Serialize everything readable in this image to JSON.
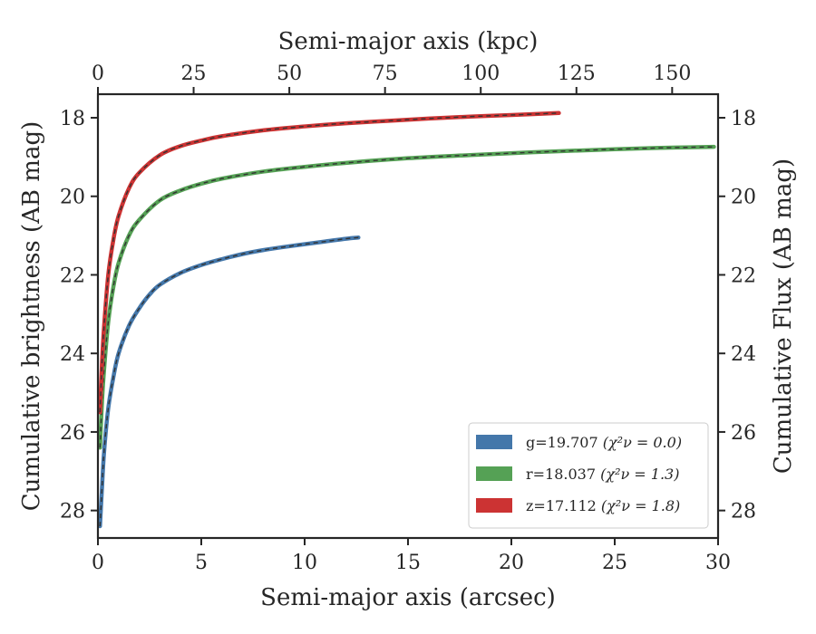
{
  "chart_data": {
    "type": "line",
    "xlabel": "Semi-major axis (arcsec)",
    "x2label": "Semi-major axis (kpc)",
    "ylabel": "Cumulative brightness (AB mag)",
    "y2label": "Cumulative Flux (AB mag)",
    "xlim": [
      0,
      30
    ],
    "x2lim": [
      0,
      162
    ],
    "ylim": [
      28.7,
      17.4
    ],
    "y_inverted": true,
    "xticks": [
      0,
      5,
      10,
      15,
      20,
      25,
      30
    ],
    "x2ticks": [
      0,
      25,
      50,
      75,
      100,
      125,
      150
    ],
    "yticks": [
      18,
      20,
      22,
      24,
      26,
      28
    ],
    "grid": false,
    "legend_position": "lower-right",
    "series": [
      {
        "name": "g=19.707",
        "chi_label": "(χ²ν = 0.0)",
        "color": "#4477aa",
        "x": [
          0.1,
          0.2,
          0.3,
          0.5,
          0.75,
          1.0,
          1.5,
          2.0,
          2.5,
          3.0,
          4.0,
          5.0,
          6.0,
          7.0,
          8.0,
          9.0,
          10.0,
          11.0,
          12.0,
          12.6
        ],
        "y": [
          28.4,
          27.4,
          26.5,
          25.4,
          24.6,
          24.0,
          23.3,
          22.85,
          22.5,
          22.25,
          21.95,
          21.75,
          21.6,
          21.47,
          21.37,
          21.29,
          21.22,
          21.15,
          21.08,
          21.05
        ]
      },
      {
        "name": "r=18.037",
        "chi_label": "(χ²ν = 1.3)",
        "color": "#55a155",
        "x": [
          0.1,
          0.2,
          0.3,
          0.5,
          0.75,
          1.0,
          1.5,
          2.0,
          3.0,
          4.0,
          5.0,
          6.0,
          8.0,
          10.0,
          12.0,
          15.0,
          18.0,
          21.0,
          24.0,
          27.0,
          29.8
        ],
        "y": [
          26.4,
          25.2,
          24.4,
          23.2,
          22.3,
          21.7,
          21.0,
          20.6,
          20.1,
          19.85,
          19.68,
          19.55,
          19.37,
          19.25,
          19.15,
          19.03,
          18.95,
          18.88,
          18.82,
          18.77,
          18.74
        ]
      },
      {
        "name": "z=17.112",
        "chi_label": "(χ²ν = 1.8)",
        "color": "#cc3333",
        "x": [
          0.1,
          0.2,
          0.3,
          0.5,
          0.75,
          1.0,
          1.5,
          2.0,
          3.0,
          4.0,
          5.0,
          6.0,
          8.0,
          10.0,
          12.0,
          14.0,
          16.0,
          18.0,
          20.0,
          22.3
        ],
        "y": [
          25.5,
          24.2,
          23.3,
          22.0,
          21.1,
          20.5,
          19.8,
          19.4,
          18.95,
          18.72,
          18.58,
          18.47,
          18.32,
          18.22,
          18.14,
          18.08,
          18.02,
          17.97,
          17.93,
          17.88
        ]
      }
    ]
  }
}
